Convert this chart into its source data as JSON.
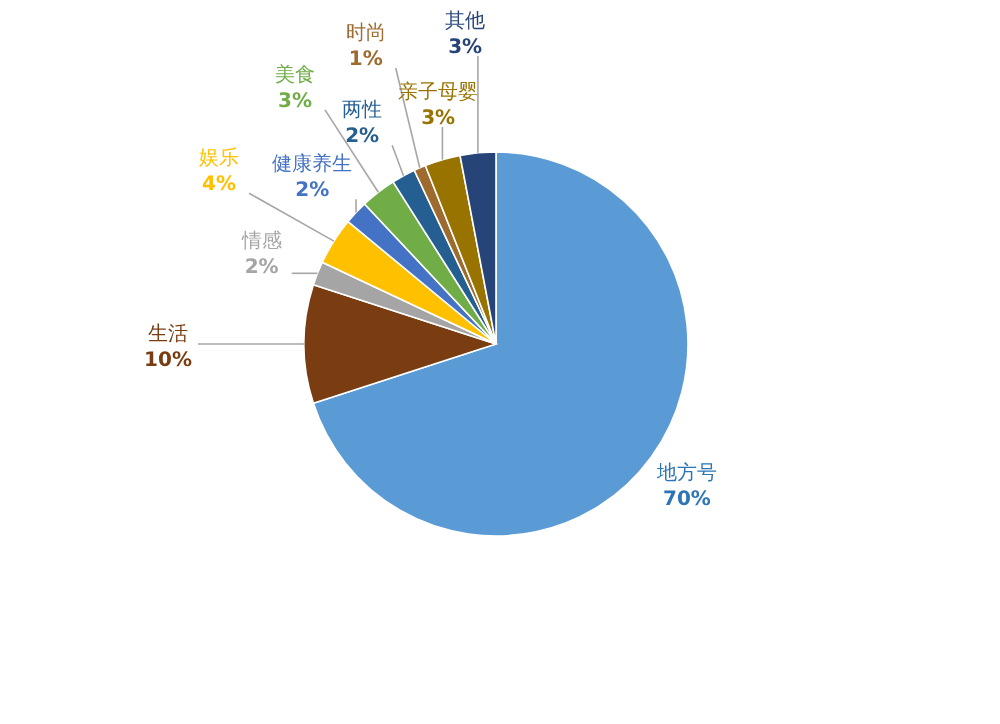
{
  "chart_data": {
    "type": "pie",
    "categories": [
      "地方号",
      "生活",
      "情感",
      "娱乐",
      "健康养生",
      "美食",
      "两性",
      "时尚",
      "亲子母婴",
      "其他"
    ],
    "values": [
      70,
      10,
      2,
      4,
      2,
      3,
      2,
      1,
      3,
      3
    ],
    "colors": [
      "#5b9bd5",
      "#7a3d12",
      "#a5a5a5",
      "#ffc000",
      "#4472c4",
      "#70ad47",
      "#255e91",
      "#9e6a2e",
      "#997300",
      "#264478"
    ],
    "value_labels": [
      "70%",
      "10%",
      "2%",
      "4%",
      "2%",
      "3%",
      "2%",
      "1%",
      "3%",
      "3%"
    ]
  }
}
